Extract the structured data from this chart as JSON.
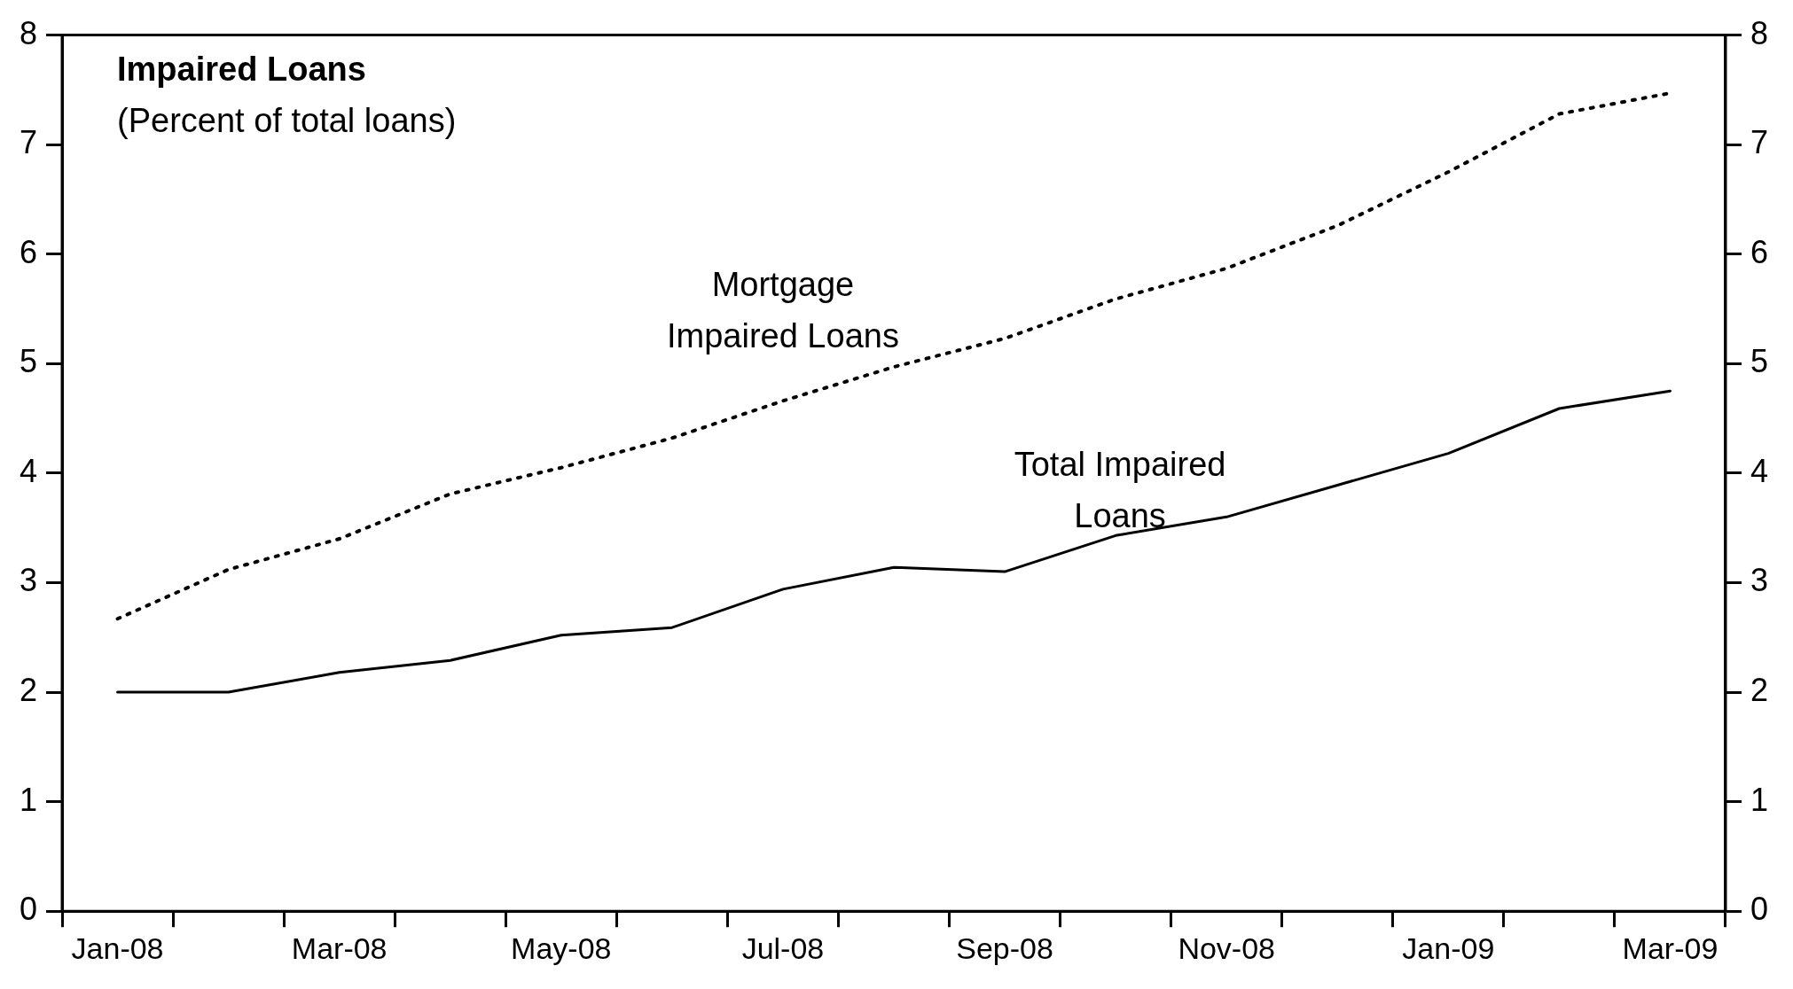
{
  "chart_data": {
    "type": "line",
    "title": "Impaired Loans",
    "subtitle": "(Percent of total loans)",
    "categories": [
      "Jan-08",
      null,
      "Mar-08",
      null,
      "May-08",
      null,
      "Jul-08",
      null,
      "Sep-08",
      null,
      "Nov-08",
      null,
      "Jan-09",
      null,
      "Mar-09"
    ],
    "series": [
      {
        "name": "Mortgage Impaired Loans",
        "color": "#000000",
        "line_style": "dotted",
        "values": [
          2.67,
          3.12,
          3.4,
          3.81,
          4.05,
          4.32,
          4.66,
          4.97,
          5.23,
          5.59,
          5.87,
          6.26,
          6.75,
          7.28,
          7.47
        ]
      },
      {
        "name": "Total Impaired Loans",
        "color": "#000000",
        "line_style": "solid",
        "values": [
          2.0,
          2.0,
          2.18,
          2.29,
          2.52,
          2.59,
          2.94,
          3.14,
          3.1,
          3.43,
          3.6,
          3.89,
          4.18,
          4.59,
          4.75
        ]
      }
    ],
    "ylim": [
      0,
      8
    ],
    "yticks": [
      0,
      1,
      2,
      3,
      4,
      5,
      6,
      7,
      8
    ],
    "y2lim": [
      0,
      8
    ],
    "y2ticks": [
      0,
      1,
      2,
      3,
      4,
      5,
      6,
      7,
      8
    ],
    "grid": false,
    "legend": false,
    "marker": "none"
  }
}
